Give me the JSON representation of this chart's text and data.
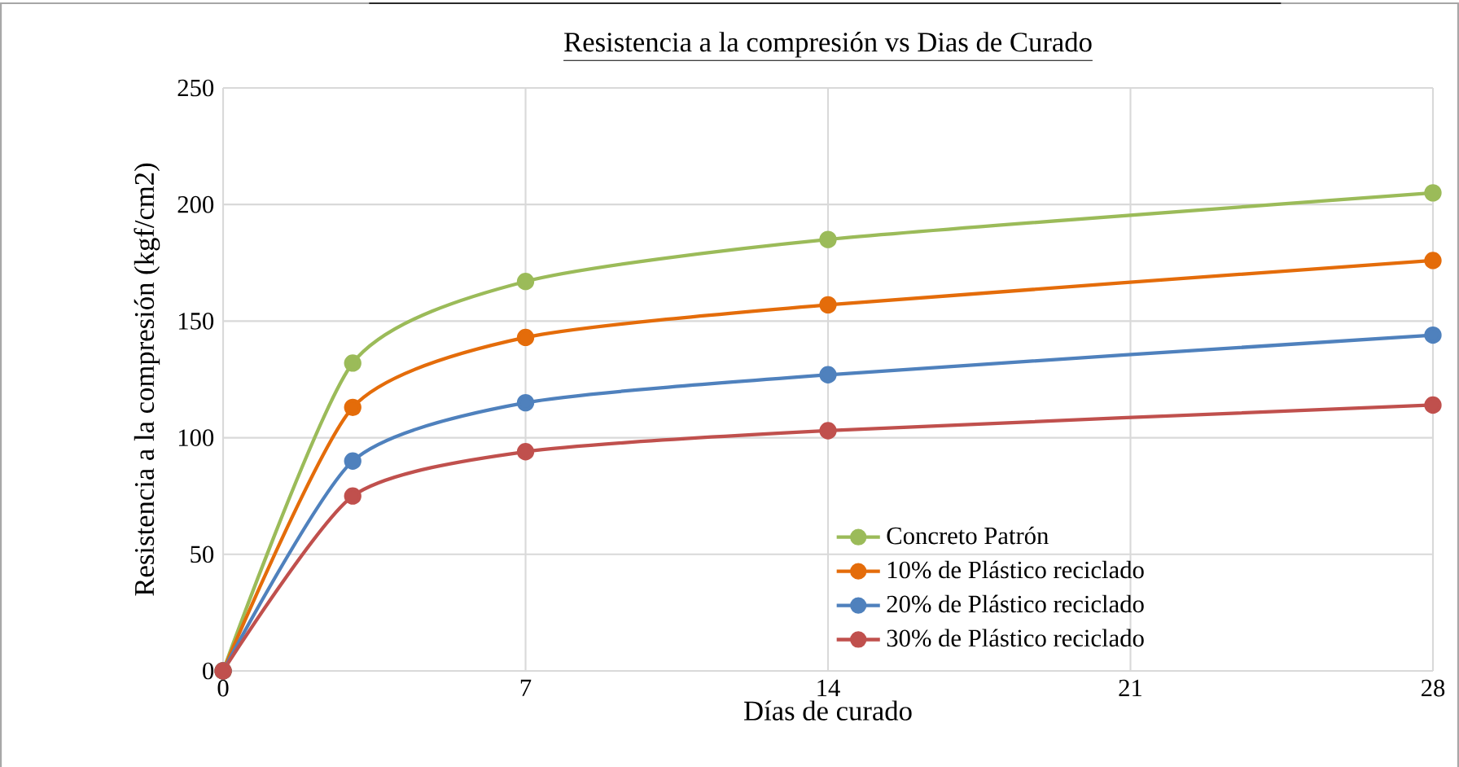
{
  "chart_data": {
    "type": "line",
    "title": "Resistencia a la compresión vs Dias de Curado",
    "xlabel": "Días de curado",
    "ylabel": "Resistencia a la compresión (kgf/cm2)",
    "x": [
      0,
      3,
      7,
      14,
      28
    ],
    "series": [
      {
        "name": "Concreto Patrón",
        "color": "#9bbb59",
        "values": [
          0,
          132,
          167,
          185,
          205
        ]
      },
      {
        "name": "10% de Plástico reciclado",
        "color": "#e46c0a",
        "values": [
          0,
          113,
          143,
          157,
          176
        ]
      },
      {
        "name": "20% de Plástico reciclado",
        "color": "#4f81bd",
        "values": [
          0,
          90,
          115,
          127,
          144
        ]
      },
      {
        "name": "30% de Plástico reciclado",
        "color": "#c0504d",
        "values": [
          0,
          75,
          94,
          103,
          114
        ]
      }
    ],
    "xlim": [
      0,
      28
    ],
    "xticks": [
      0,
      7,
      14,
      21,
      28
    ],
    "ylim": [
      0,
      250
    ],
    "yticks": [
      0,
      50,
      100,
      150,
      200,
      250
    ],
    "grid": true,
    "legend": "bottom right",
    "marker": "circle",
    "line_style": "solid"
  }
}
